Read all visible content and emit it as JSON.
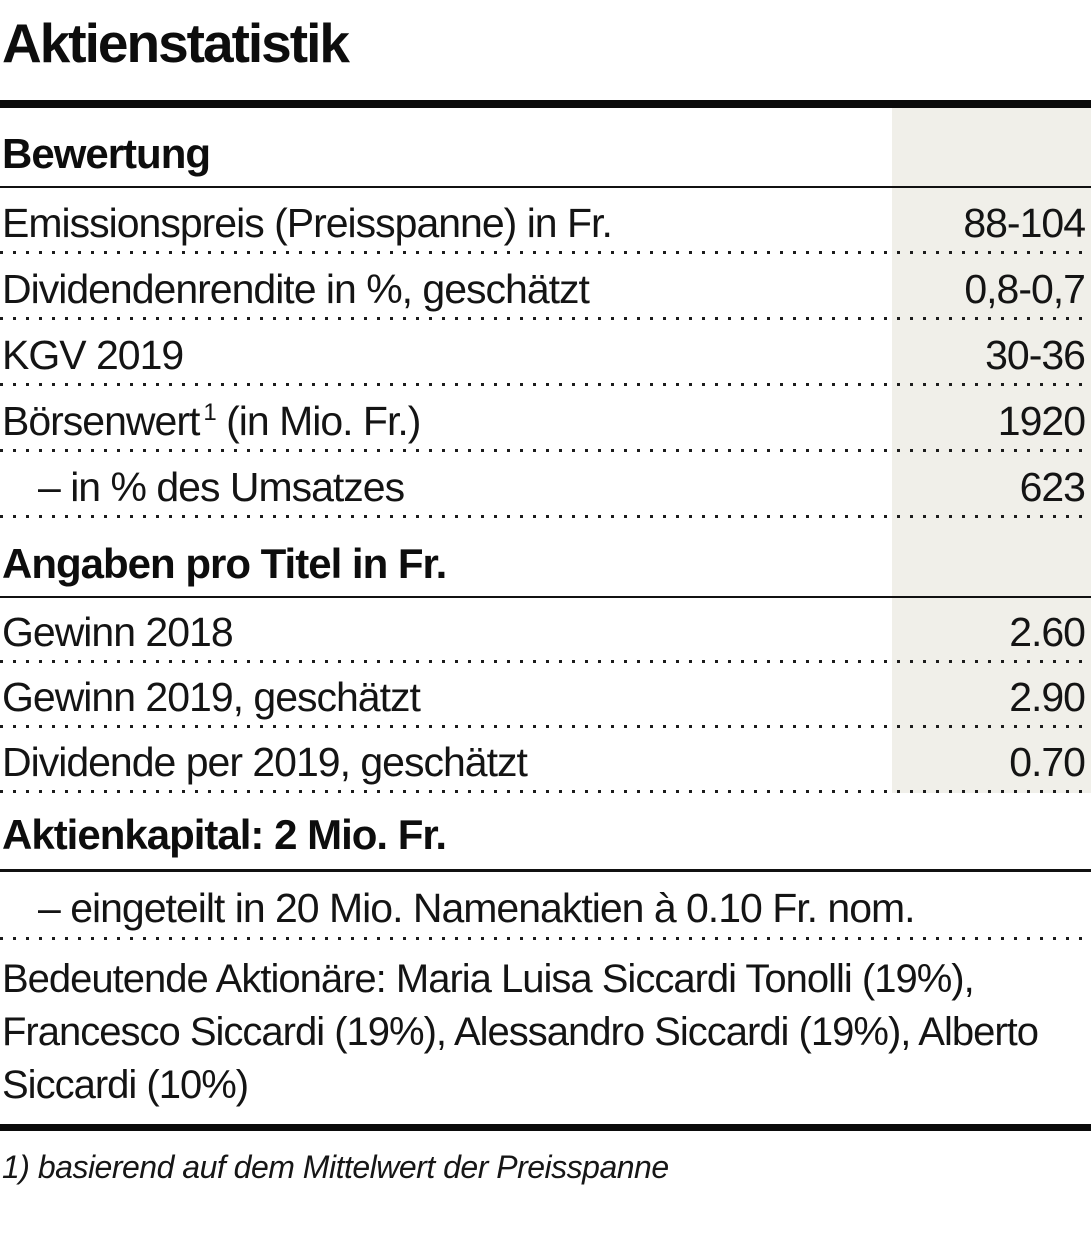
{
  "title": "Aktienstatistik",
  "colors": {
    "shade": "#f0efe9",
    "rule": "#0b0b0b",
    "text": "#141414"
  },
  "sections": [
    {
      "heading": "Bewertung",
      "rows": [
        {
          "label": "Emissionspreis (Preisspanne) in Fr.",
          "value": "88-104"
        },
        {
          "label": "Dividendenrendite in %, geschätzt",
          "value": "0,8-0,7"
        },
        {
          "label": "KGV 2019",
          "value": "30-36"
        },
        {
          "label": "Börsenwert",
          "sup": "1",
          "label2": " (in Mio. Fr.)",
          "value": "1920"
        },
        {
          "label": "– in % des Umsatzes",
          "value": "623"
        }
      ]
    },
    {
      "heading": "Angaben pro Titel in Fr.",
      "rows": [
        {
          "label": "Gewinn 2018",
          "value": "2.60"
        },
        {
          "label": "Gewinn 2019, geschätzt",
          "value": "2.90"
        },
        {
          "label": "Dividende per 2019, geschätzt",
          "value": "0.70"
        }
      ]
    }
  ],
  "capital": {
    "heading": "Aktienkapital: 2 Mio. Fr.",
    "detail": "– eingeteilt in 20 Mio. Namenaktien à 0.10 Fr. nom.",
    "shareholders": "Bedeutende Aktionäre: Maria Luisa Siccardi Tonolli (19%), Francesco Siccardi (19%), Alessandro Siccardi (19%), Alberto Siccardi (10%)"
  },
  "footnote": "1) basierend auf dem Mittelwert der Preisspanne"
}
